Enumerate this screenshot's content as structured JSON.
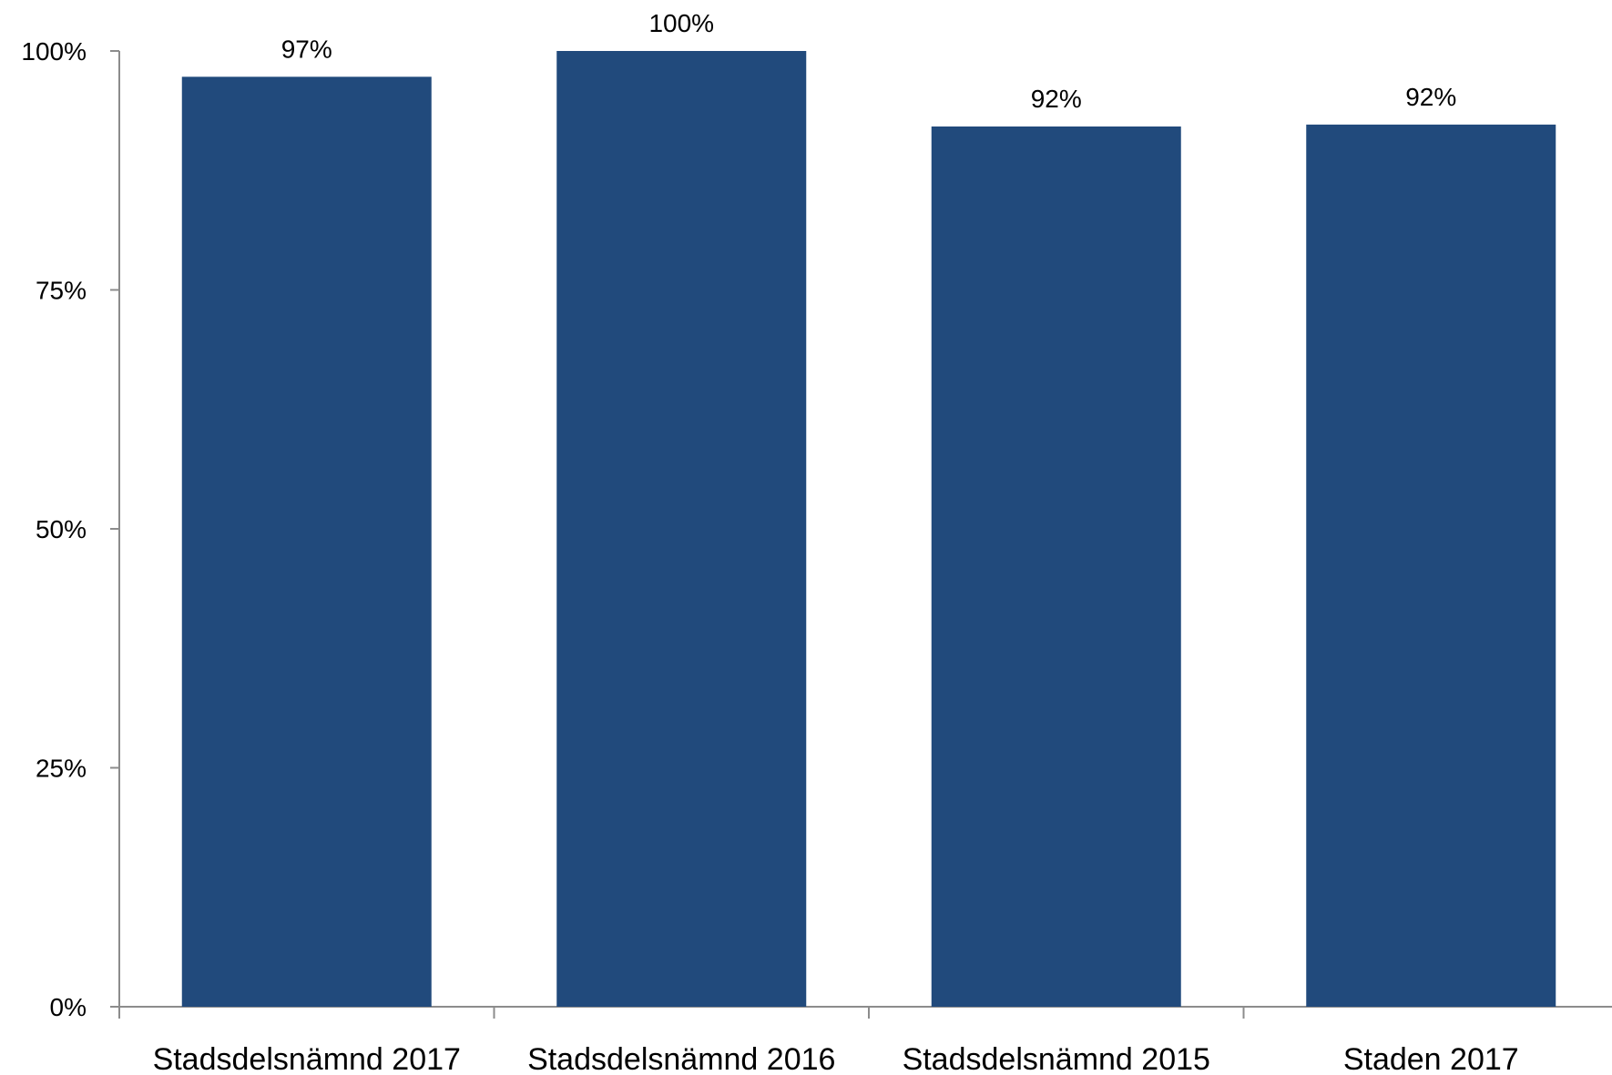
{
  "chart_data": {
    "type": "bar",
    "title": "",
    "xlabel": "",
    "ylabel": "",
    "categories": [
      "Stadsdelsnämnd 2017",
      "Stadsdelsnämnd 2016",
      "Stadsdelsnämnd 2015",
      "Staden 2017"
    ],
    "values": [
      0.973,
      1.0,
      0.921,
      0.923
    ],
    "data_labels": [
      "97%",
      "100%",
      "92%",
      "92%"
    ],
    "ylim": [
      0,
      1
    ],
    "yticks": [
      0,
      0.25,
      0.5,
      0.75,
      1.0
    ],
    "ytick_labels": [
      "0%",
      "25%",
      "50%",
      "75%",
      "100%"
    ],
    "bar_color": "#214A7C",
    "axis_color": "#8C8C8C",
    "grid": false,
    "legend": "none"
  }
}
